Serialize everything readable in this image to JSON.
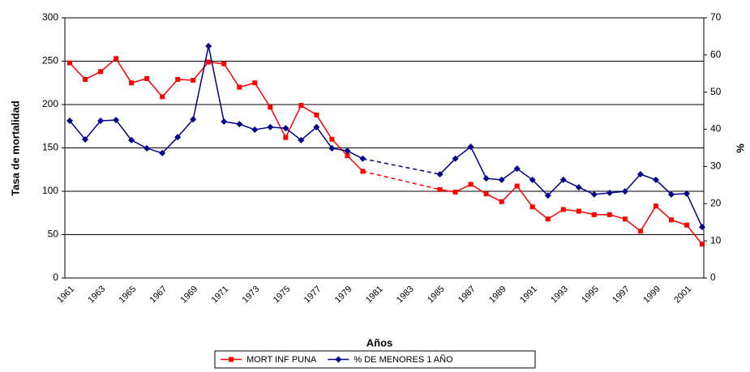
{
  "chart_data": {
    "type": "line",
    "x_label": "Años",
    "y_label": "Tasa de mortalidad",
    "y2_label": "%",
    "categories": [
      "1961",
      null,
      "1963",
      null,
      "1965",
      null,
      "1967",
      null,
      "1969",
      null,
      "1971",
      null,
      "1973",
      null,
      "1975",
      null,
      "1977",
      null,
      "1979",
      null,
      "1981",
      null,
      "1983",
      null,
      "1985",
      null,
      "1987",
      null,
      "1989",
      null,
      "1991",
      null,
      "1993",
      null,
      "1995",
      null,
      "1997",
      null,
      "1999",
      null,
      "2001",
      null
    ],
    "series": [
      {
        "name": "MORT INF PUNA",
        "color": "#ff0000",
        "marker": "square",
        "axis": "y",
        "values": [
          248,
          229,
          238,
          253,
          225,
          230,
          209,
          229,
          228,
          249,
          247,
          220,
          225,
          197,
          162,
          199,
          188,
          160,
          141,
          123,
          null,
          null,
          null,
          null,
          102,
          99,
          108,
          97,
          88,
          106,
          82,
          68,
          79,
          77,
          73,
          73,
          68,
          54,
          83,
          67,
          61,
          39
        ]
      },
      {
        "name": "% DE MENORES 1 AÑO",
        "color": "#00008b",
        "marker": "diamond",
        "axis": "y2",
        "values": [
          42.3,
          37.3,
          42.3,
          42.5,
          37.1,
          34.9,
          33.6,
          37.9,
          42.7,
          62.4,
          42.1,
          41.4,
          39.9,
          40.6,
          40.3,
          37.1,
          40.6,
          34.9,
          34.2,
          32.1,
          null,
          null,
          null,
          null,
          27.9,
          32.1,
          35.3,
          26.8,
          26.4,
          29.4,
          26.4,
          22.2,
          26.4,
          24.4,
          22.5,
          22.9,
          23.3,
          27.9,
          26.4,
          22.5,
          22.7,
          13.7
        ]
      }
    ],
    "ylim": [
      0,
      300
    ],
    "yticks": [
      0,
      50,
      100,
      150,
      200,
      250,
      300
    ],
    "y2lim": [
      0,
      70
    ],
    "y2ticks": [
      0,
      10,
      20,
      30,
      40,
      50,
      60,
      70
    ],
    "grid": true,
    "gap_style": "dashed",
    "legend": "bottom"
  }
}
